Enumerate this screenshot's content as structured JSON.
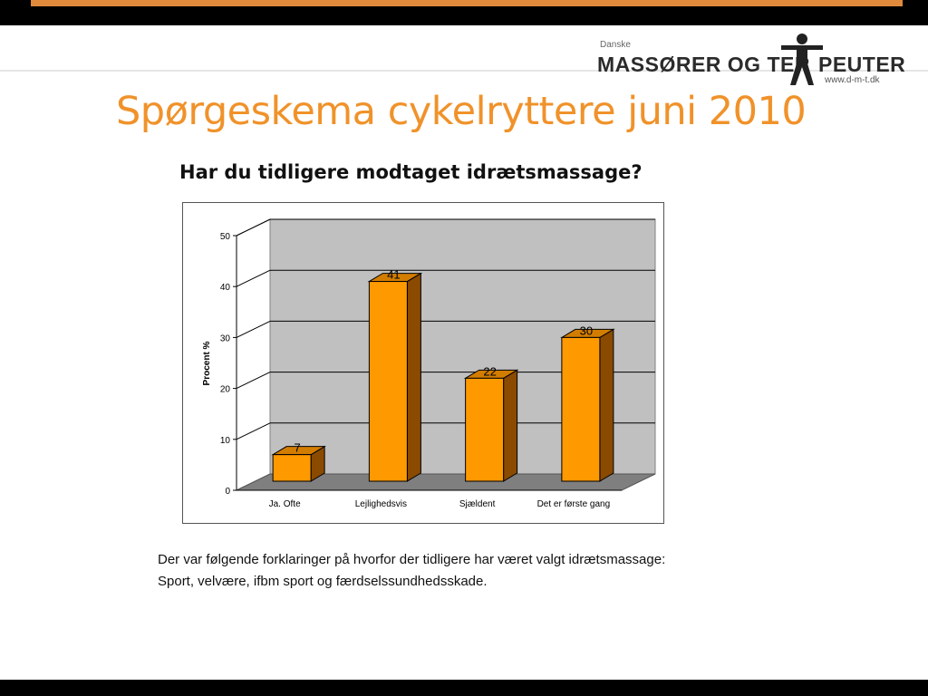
{
  "logo": {
    "small": "Danske",
    "main_left": "MASSØRER OG TER",
    "main_right": "PEUTER",
    "url": "www.d-m-t.dk"
  },
  "slide": {
    "title": "Spørgeskema cykelryttere juni 2010",
    "chart_title": "Har du tidligere modtaget idrætsmassage?",
    "note_line1": "Der var følgende forklaringer på hvorfor der tidligere har været valgt idrætsmassage:",
    "note_line2": "Sport, velvære, ifbm sport og færdselssundhedsskade."
  },
  "colors": {
    "title": "#f0922a",
    "bar_front": "#ff9900",
    "bar_top": "#d37d00",
    "bar_side": "#8a4a00",
    "plot_back": "#c0c0c0",
    "plot_floor": "#7f7f7f"
  },
  "chart_data": {
    "type": "bar",
    "title": "Har du tidligere modtaget idrætsmassage?",
    "xlabel": "",
    "ylabel": "Procent %",
    "categories": [
      "Ja. Ofte",
      "Lejlighedsvis",
      "Sjældent",
      "Det er første gang"
    ],
    "values": [
      7,
      41,
      22,
      30
    ],
    "data_labels": [
      "7",
      "41",
      "22",
      "30"
    ],
    "ylim": [
      0,
      50
    ],
    "yticks": [
      0,
      10,
      20,
      30,
      40,
      50
    ],
    "grid": true,
    "legend": "none",
    "style": "3d"
  }
}
